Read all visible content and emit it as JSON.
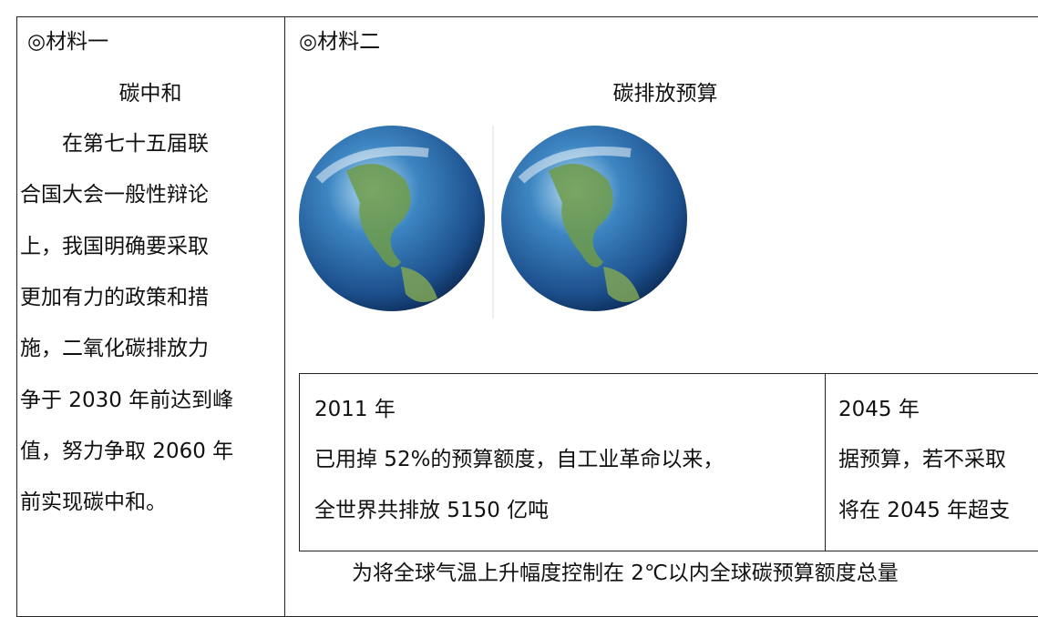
{
  "left": {
    "label": "◎材料一",
    "title": "碳中和",
    "lines": [
      "在第七十五届联",
      "合国大会一般性辩论",
      "上，我国明确要采取",
      "更加有力的政策和措",
      "施，二氧化碳排放力",
      "争于 2030 年前达到峰",
      "值，努力争取 2060 年",
      "前实现碳中和。"
    ]
  },
  "right": {
    "label": "◎材料二",
    "title": "碳排放预算",
    "table": {
      "cells": [
        {
          "year": "2011 年",
          "lines": [
            "已用掉 52%的预算额度，自工业革命以来，",
            "全世界共排放 5150 亿吨"
          ]
        },
        {
          "year": "2045 年",
          "lines": [
            "据预算，若不采取",
            "将在 2045 年超支"
          ]
        }
      ]
    },
    "caption": "为将全球气温上升幅度控制在 2℃以内全球碳预算额度总量"
  }
}
